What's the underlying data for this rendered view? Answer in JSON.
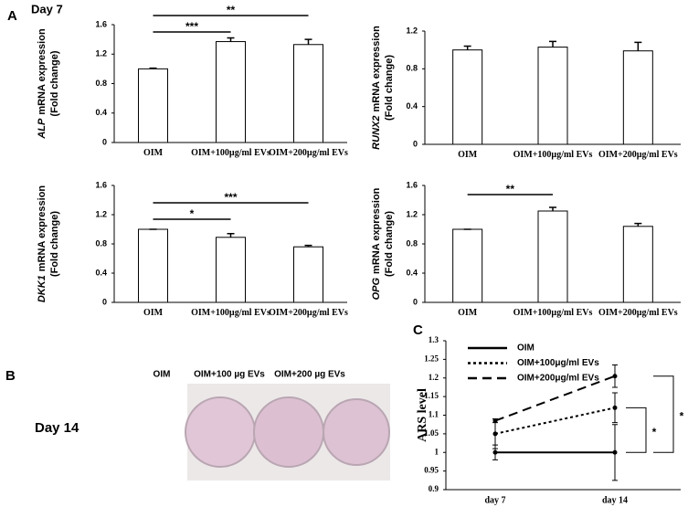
{
  "labels": {
    "panel_a": "A",
    "panel_b": "B",
    "panel_c": "C",
    "day7": "Day 7",
    "day14": "Day 14",
    "wells": [
      "OIM",
      "OIM+100 µg EVs",
      "OIM+200 µg EVs"
    ]
  },
  "chart_data": [
    {
      "type": "bar",
      "y_label_gene": "ALP",
      "y_label": "mRNA expression",
      "y_label_2": "(Fold change)",
      "categories": [
        "OIM",
        "OIM+100µg/ml EVs",
        "OIM+200µg/ml EVs"
      ],
      "values": [
        1.0,
        1.37,
        1.33
      ],
      "errors": [
        0.01,
        0.05,
        0.07
      ],
      "ylim": [
        0,
        1.6
      ],
      "yticks": [
        0,
        0.4,
        0.8,
        1.2,
        1.6
      ],
      "color": "#ffffff",
      "significance": [
        {
          "from": 0,
          "to": 2,
          "label": "**"
        },
        {
          "from": 0,
          "to": 1,
          "label": "***"
        }
      ]
    },
    {
      "type": "bar",
      "y_label_gene": "RUNX2",
      "y_label": "mRNA expression",
      "y_label_2": "(Fold change)",
      "categories": [
        "OIM",
        "OIM+100µg/ml EVs",
        "OIM+200µg/ml EVs"
      ],
      "values": [
        1.0,
        1.03,
        0.99
      ],
      "errors": [
        0.04,
        0.06,
        0.09
      ],
      "ylim": [
        0,
        1.2
      ],
      "yticks": [
        0,
        0.4,
        0.8,
        1.2
      ],
      "color": "#ffffff",
      "significance": []
    },
    {
      "type": "bar",
      "y_label_gene": "DKK1",
      "y_label": "mRNA expression",
      "y_label_2": "(Fold change)",
      "categories": [
        "OIM",
        "OIM+100µg/ml EVs",
        "OIM+200µg/ml EVs"
      ],
      "values": [
        1.0,
        0.89,
        0.76
      ],
      "errors": [
        0.0,
        0.05,
        0.02
      ],
      "ylim": [
        0,
        1.6
      ],
      "yticks": [
        0,
        0.4,
        0.8,
        1.2,
        1.6
      ],
      "color": "#ffffff",
      "significance": [
        {
          "from": 0,
          "to": 1,
          "label": "*"
        },
        {
          "from": 0,
          "to": 2,
          "label": "***"
        }
      ]
    },
    {
      "type": "bar",
      "y_label_gene": "OPG",
      "y_label": "mRNA expression",
      "y_label_2": "(Fold change)",
      "categories": [
        "OIM",
        "OIM+100µg/ml EVs",
        "OIM+200µg/ml EVs"
      ],
      "values": [
        1.0,
        1.25,
        1.04
      ],
      "errors": [
        0.0,
        0.05,
        0.04
      ],
      "ylim": [
        0,
        1.6
      ],
      "yticks": [
        0,
        0.4,
        0.8,
        1.2,
        1.6
      ],
      "color": "#ffffff",
      "significance": [
        {
          "from": 0,
          "to": 1,
          "label": "**"
        }
      ]
    },
    {
      "type": "line",
      "y_label": "ARS level",
      "categories": [
        "day 7",
        "day 14"
      ],
      "series": [
        {
          "name": "OIM",
          "color": "#000000",
          "line_style": "solid",
          "values": [
            1.0,
            1.0
          ],
          "errors": [
            0.02,
            0.075
          ]
        },
        {
          "name": "OIM+100μg/ml EVs",
          "color": "#000000",
          "line_style": "dotted",
          "values": [
            1.05,
            1.12
          ],
          "errors": [
            0.04,
            0.04
          ]
        },
        {
          "name": "OIM+200μg/ml EVs",
          "color": "#000000",
          "line_style": "dashed",
          "values": [
            1.085,
            1.205
          ],
          "errors": [
            0.005,
            0.03
          ]
        }
      ],
      "ylim": [
        0.9,
        1.3
      ],
      "yticks": [
        0.9,
        0.95,
        1,
        1.05,
        1.1,
        1.15,
        1.2,
        1.25,
        1.3
      ],
      "significance": [
        {
          "from_series": 0,
          "to_series": 1,
          "label": "*"
        },
        {
          "from_series": 0,
          "to_series": 2,
          "label": "*"
        }
      ]
    }
  ]
}
